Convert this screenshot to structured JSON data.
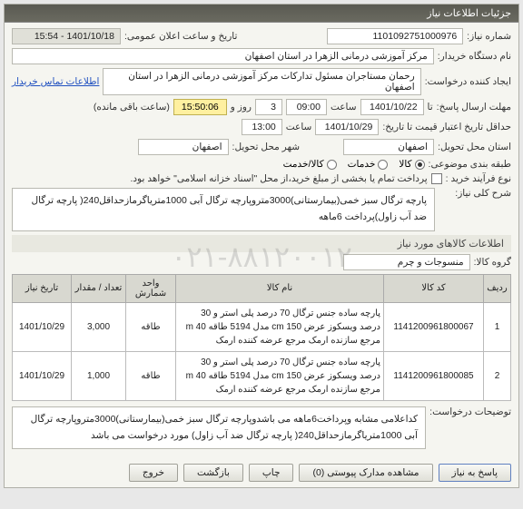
{
  "panel_title": "جزئیات اطلاعات نیاز",
  "info": {
    "need_no_label": "شماره نیاز:",
    "need_no": "1101092751000976",
    "announce_label": "تاریخ و ساعت اعلان عمومی:",
    "announce_value": "1401/10/18 - 15:54",
    "org_label": "نام دستگاه خریدار:",
    "org_value": "مرکز آموزشی درمانی الزهرا در استان اصفهان",
    "creator_label": "ایجاد کننده درخواست:",
    "creator_value": "رحمان مستاجران مسئول تدارکات مرکز آموزشی درمانی الزهرا در استان اصفهان",
    "contact_link": "اطلاعات تماس خریدار",
    "deadline_send_label": "مهلت ارسال پاسخ:",
    "deadline_send_tz": "تا",
    "deadline_send_date": "1401/10/22",
    "deadline_send_time_label": "ساعت",
    "deadline_send_time": "09:00",
    "day_count_label": "",
    "day_count": "3",
    "day_word": "روز و",
    "timer": "15:50:06",
    "remain": "(ساعت باقی مانده)",
    "validity_label": "حداقل تاریخ اعتبار قیمت تا تاریخ:",
    "validity_date": "1401/10/29",
    "validity_time_label": "ساعت",
    "validity_time": "13:00",
    "province_label": "استان محل تحویل:",
    "province": "اصفهان",
    "city_label": "شهر محل تحویل:",
    "city": "اصفهان",
    "multi_label": "طبقه بندی موضوعی:",
    "opt_kala": "کالا",
    "opt_khadamat": "خدمات",
    "opt_both": "کالا/خدمت",
    "process_label": "نوع فرآیند خرید :",
    "note": "پرداخت تمام یا بخشی از مبلغ خرید،از محل \"اسناد خزانه اسلامی\" خواهد بود.",
    "section_desc": "شرح کلی نیاز:",
    "desc": "پارچه ترگال سبز خمی(بیمارستانی)3000متروپارچه ترگال آبی 1000متریاگرمازحداقل240( پارچه ترگال ضد آب زاول)پرداخت 6ماهه",
    "section_goods": "اطلاعات کالاهای مورد نیاز",
    "group_label": "گروه کالا:",
    "group_value": "منسوجات و چرم",
    "col_row": "ردیف",
    "col_code": "کد کالا",
    "col_name": "نام کالا",
    "col_unit": "واحد شمارش",
    "col_qty": "تعداد / مقدار",
    "col_date": "تاریخ نیاز",
    "rows": [
      {
        "n": "1",
        "code": "1141200961800067",
        "name": "پارچه ساده جنس ترگال 70 درصد پلی استر و 30 درصد ویسکوز عرض cm 150 مدل 5194 طاقه m 40 مرجع سازنده ارمک مرجع عرضه کننده ارمک",
        "unit": "طاقه",
        "qty": "3,000",
        "date": "1401/10/29"
      },
      {
        "n": "2",
        "code": "1141200961800085",
        "name": "پارچه ساده جنس ترگال 70 درصد پلی استر و 30 درصد ویسکوز عرض cm 150 مدل 5194 طاقه m 40 مرجع سازنده ارمک مرجع عرضه کننده ارمک",
        "unit": "طاقه",
        "qty": "1,000",
        "date": "1401/10/29"
      }
    ],
    "extra_desc_label": "توضیحات درخواست:",
    "extra_desc": "کداعلامی مشابه وپرداخت6ماهه می باشدوپارچه ترگال سبز خمی(بیمارستانی)3000متروپارچه ترگال آبی 1000متریاگرمازحداقل240( پارچه ترگال ضد آب زاول) مورد درخواست می باشد"
  },
  "buttons": {
    "reply": "پاسخ به نیاز",
    "docs": "مشاهده مدارک پیوستی (0)",
    "print": "چاپ",
    "back": "بازگشت",
    "exit": "خروج"
  },
  "watermark": "۰۲۱-۸۸۱۲۰۰۱۲",
  "colors": {
    "header_bg": "#5a5a52",
    "panel_bg": "#f5f5f0",
    "border": "#b0b0a8",
    "link": "#2050c0",
    "timer_bg": "#fff0a0"
  }
}
